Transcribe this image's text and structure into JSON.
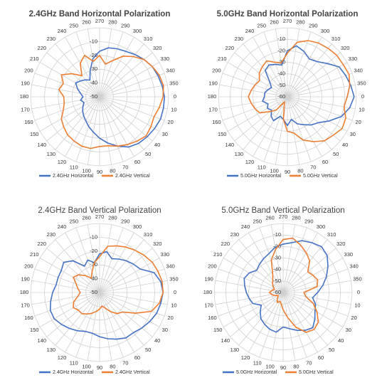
{
  "chart_data": [
    {
      "type": "radar",
      "title": "2.4GHz Band Horizontal Polarization",
      "categories": [
        0,
        10,
        20,
        30,
        40,
        50,
        60,
        70,
        80,
        90,
        100,
        110,
        120,
        130,
        140,
        150,
        160,
        170,
        180,
        190,
        200,
        210,
        220,
        230,
        240,
        250,
        260,
        270,
        280,
        290,
        300,
        310,
        320,
        330,
        340,
        350
      ],
      "ylim": [
        -50,
        0
      ],
      "yticks": [
        -50,
        -40,
        -30,
        -20,
        -10
      ],
      "series": [
        {
          "name": "2.4GHz Horizontal",
          "color": "#4472c4",
          "values": [
            -3,
            -3,
            -3,
            -4,
            -5,
            -6,
            -8,
            -12,
            -16,
            -20,
            -24,
            -27,
            -30,
            -32,
            -34,
            -36,
            -38,
            -36,
            -38,
            -36,
            -33,
            -30,
            -32,
            -34,
            -36,
            -30,
            -22,
            -17,
            -14,
            -13,
            -12,
            -10,
            -8,
            -6,
            -5,
            -4
          ]
        },
        {
          "name": "2.4GHz Vertical",
          "color": "#ed7d31",
          "values": [
            -4,
            -6,
            -8,
            -7,
            -6,
            -8,
            -10,
            -12,
            -14,
            -14,
            -12,
            -12,
            -13,
            -14,
            -16,
            -18,
            -22,
            -24,
            -24,
            -20,
            -22,
            -18,
            -24,
            -30,
            -22,
            -18,
            -24,
            -20,
            -26,
            -22,
            -16,
            -12,
            -8,
            -6,
            -4,
            -3
          ]
        }
      ]
    },
    {
      "type": "radar",
      "title": "5.0GHz Band Horizontal Polarization",
      "categories": [
        0,
        10,
        20,
        30,
        40,
        50,
        60,
        70,
        80,
        90,
        100,
        110,
        120,
        130,
        140,
        150,
        160,
        170,
        180,
        190,
        200,
        210,
        220,
        230,
        240,
        250,
        260,
        270,
        280,
        290,
        300,
        310,
        320,
        330,
        340,
        350
      ],
      "ylim": [
        -60,
        0
      ],
      "yticks": [
        -60,
        -50,
        -40,
        -30,
        -20,
        -10
      ],
      "series": [
        {
          "name": "5.0GHz Horizontal",
          "color": "#4472c4",
          "values": [
            -2,
            -5,
            -10,
            -18,
            -25,
            -28,
            -32,
            -35,
            -40,
            -35,
            -40,
            -42,
            -36,
            -38,
            -42,
            -40,
            -42,
            -38,
            -40,
            -40,
            -42,
            -44,
            -40,
            -30,
            -28,
            -30,
            -32,
            -20,
            -15,
            -18,
            -22,
            -20,
            -15,
            -8,
            -6,
            -4
          ]
        },
        {
          "name": "5.0GHz Vertical",
          "color": "#ed7d31",
          "values": [
            -8,
            -10,
            -6,
            -5,
            -8,
            -10,
            -15,
            -20,
            -28,
            -30,
            -40,
            -52,
            -55,
            -45,
            -40,
            -32,
            -30,
            -28,
            -26,
            -28,
            -30,
            -32,
            -28,
            -26,
            -24,
            -28,
            -30,
            -22,
            -12,
            -8,
            -6,
            -5,
            -4,
            -4,
            -3,
            -5
          ]
        }
      ]
    },
    {
      "type": "radar",
      "title": "2.4GHz Band Vertical Polarization",
      "categories": [
        0,
        10,
        20,
        30,
        40,
        50,
        60,
        70,
        80,
        90,
        100,
        110,
        120,
        130,
        140,
        150,
        160,
        170,
        180,
        190,
        200,
        210,
        220,
        230,
        240,
        250,
        260,
        270,
        280,
        290,
        300,
        310,
        320,
        330,
        340,
        350
      ],
      "ylim": [
        -50,
        0
      ],
      "yticks": [
        -50,
        -40,
        -30,
        -20,
        -10
      ],
      "series": [
        {
          "name": "2.4GHz Horizontal",
          "color": "#4472c4",
          "values": [
            -4,
            -5,
            -6,
            -8,
            -10,
            -12,
            -12,
            -14,
            -16,
            -18,
            -20,
            -20,
            -18,
            -16,
            -14,
            -12,
            -12,
            -14,
            -16,
            -18,
            -18,
            -18,
            -16,
            -20,
            -28,
            -25,
            -28,
            -22,
            -20,
            -24,
            -22,
            -20,
            -18,
            -16,
            -8,
            -5
          ]
        },
        {
          "name": "2.4GHz Vertical",
          "color": "#ed7d31",
          "values": [
            -4,
            -6,
            -10,
            -20,
            -28,
            -30,
            -34,
            -38,
            -40,
            -38,
            -36,
            -34,
            -32,
            -30,
            -30,
            -28,
            -30,
            -34,
            -36,
            -34,
            -32,
            -28,
            -30,
            -34,
            -38,
            -34,
            -28,
            -24,
            -16,
            -14,
            -12,
            -10,
            -8,
            -6,
            -5,
            -4
          ]
        }
      ]
    },
    {
      "type": "radar",
      "title": "5.0GHz Band Vertical Polarization",
      "categories": [
        0,
        10,
        20,
        30,
        40,
        50,
        60,
        70,
        80,
        90,
        100,
        110,
        120,
        130,
        140,
        150,
        160,
        170,
        180,
        190,
        200,
        210,
        220,
        230,
        240,
        250,
        260,
        270,
        280,
        290,
        300,
        310,
        320,
        330,
        340,
        350
      ],
      "ylim": [
        -60,
        0
      ],
      "yticks": [
        -60,
        -50,
        -40,
        -30,
        -20,
        -10
      ],
      "series": [
        {
          "name": "5.0GHz Horizontal",
          "color": "#4472c4",
          "values": [
            -30,
            -34,
            -30,
            -28,
            -24,
            -20,
            -22,
            -25,
            -28,
            -30,
            -25,
            -26,
            -28,
            -30,
            -34,
            -38,
            -32,
            -30,
            -28,
            -26,
            -24,
            -26,
            -30,
            -28,
            -26,
            -24,
            -20,
            -18,
            -16,
            -12,
            -10,
            -8,
            -10,
            -15,
            -20,
            -25
          ]
        },
        {
          "name": "5.0GHz Vertical",
          "color": "#ed7d31",
          "values": [
            -42,
            -40,
            -32,
            -26,
            -20,
            -18,
            -20,
            -28,
            -38,
            -45,
            -50,
            -52,
            -50,
            -52,
            -54,
            -55,
            -52,
            -50,
            -48,
            -50,
            -52,
            -50,
            -48,
            -46,
            -42,
            -30,
            -22,
            -14,
            -12,
            -16,
            -20,
            -24,
            -32,
            -30,
            -28,
            -30
          ]
        }
      ]
    }
  ]
}
